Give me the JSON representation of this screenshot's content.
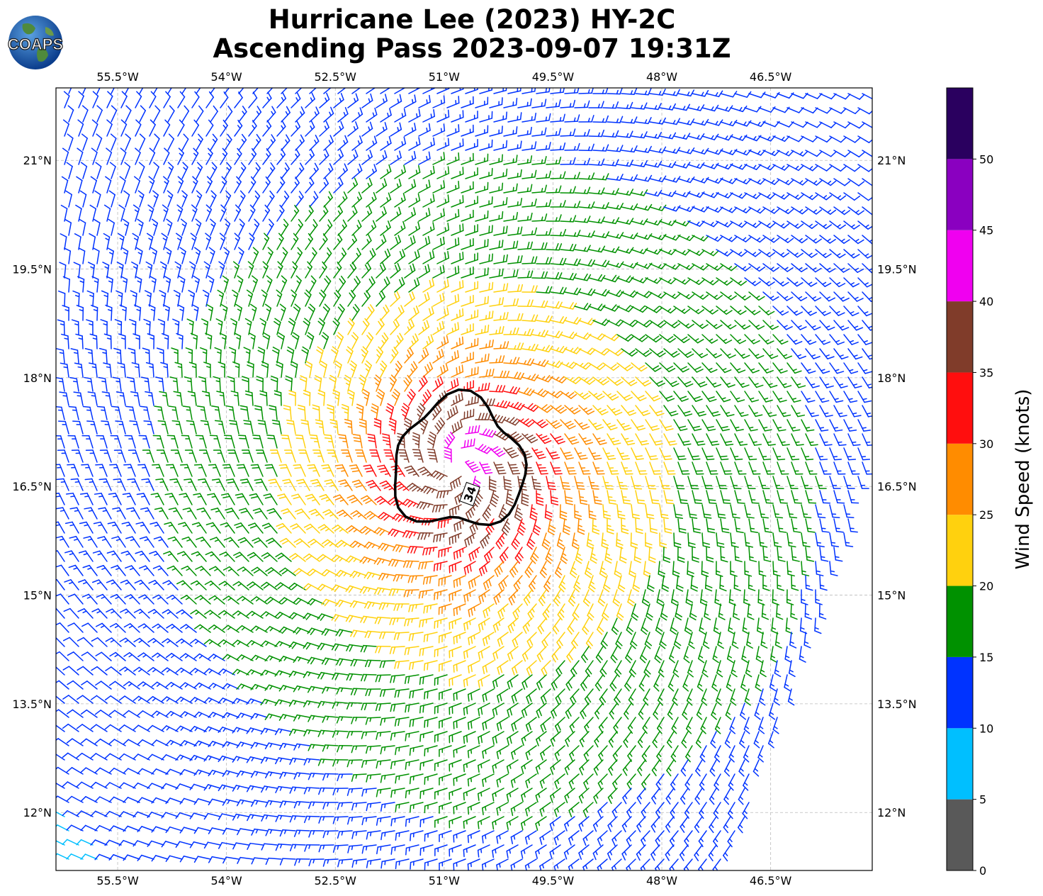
{
  "title_line1": "Hurricane Lee (2023) HY-2C",
  "title_line2": "Ascending Pass 2023-09-07 19:31Z",
  "logo_text": "COAPS",
  "contour_label": "34",
  "map": {
    "lon_ticks": [
      "55.5°W",
      "54°W",
      "52.5°W",
      "51°W",
      "49.5°W",
      "48°W",
      "46.5°W"
    ],
    "lat_ticks": [
      "21°N",
      "19.5°N",
      "18°N",
      "16.5°N",
      "15°N",
      "13.5°N",
      "12°N"
    ],
    "lon_range": [
      -56.35,
      -45.1
    ],
    "lat_range": [
      11.2,
      22.0
    ],
    "storm_center": {
      "lon": -50.8,
      "lat": 16.8
    },
    "contour_knots": 34,
    "grid": true
  },
  "colorbar": {
    "label": "Wind Speed (knots)",
    "ticks": [
      "0",
      "5",
      "10",
      "15",
      "20",
      "25",
      "30",
      "35",
      "40",
      "45",
      "50"
    ],
    "bins": [
      {
        "min": 0,
        "max": 5,
        "color": "#595959"
      },
      {
        "min": 5,
        "max": 10,
        "color": "#00bfff"
      },
      {
        "min": 10,
        "max": 15,
        "color": "#0033ff"
      },
      {
        "min": 15,
        "max": 20,
        "color": "#009100"
      },
      {
        "min": 20,
        "max": 25,
        "color": "#ffd10e"
      },
      {
        "min": 25,
        "max": 30,
        "color": "#ff8c00"
      },
      {
        "min": 30,
        "max": 35,
        "color": "#ff0e0e"
      },
      {
        "min": 35,
        "max": 40,
        "color": "#803c2a"
      },
      {
        "min": 40,
        "max": 45,
        "color": "#f000f0"
      },
      {
        "min": 45,
        "max": 50,
        "color": "#8a00c0"
      },
      {
        "min": 50,
        "max": 55,
        "color": "#2a005f"
      }
    ]
  }
}
